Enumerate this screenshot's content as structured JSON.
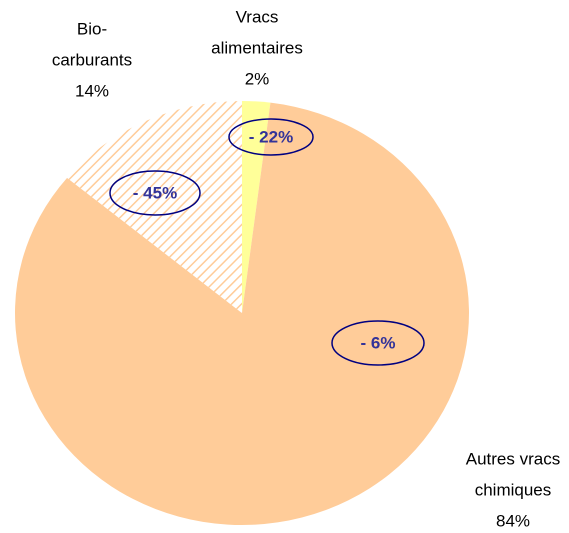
{
  "chart_data": {
    "type": "pie",
    "categories": [
      [
        "Vracs",
        "alimentaires"
      ],
      [
        "Autres vracs",
        "chimiques"
      ],
      [
        "Bio-",
        "carburants"
      ]
    ],
    "values": [
      2,
      84,
      14
    ],
    "value_labels": [
      "2%",
      "84%",
      "14%"
    ],
    "colors": [
      "#ffff99",
      "#ffcc99",
      "#ffcc99"
    ],
    "hatched": [
      false,
      false,
      true
    ],
    "annotations": [
      "- 22%",
      "- 6%",
      "- 45%"
    ],
    "start_angle": 0,
    "direction": "clockwise"
  }
}
